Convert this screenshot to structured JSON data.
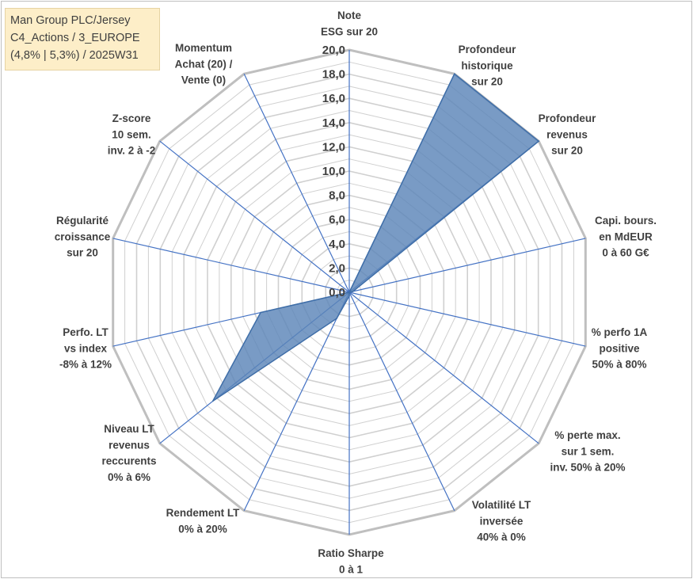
{
  "title_box": {
    "line1": "Man Group PLC/Jersey",
    "line2": "C4_Actions / 3_EUROPE",
    "line3": "(4,8% | 5,3%) / 2025W31"
  },
  "colors": {
    "fill": "#5b85b8",
    "stroke": "#3f6ea8",
    "spoke": "#4472c4",
    "grid": "#d0d0d0",
    "outer_ring": "#bfbfbf",
    "title_bg": "#fdeec8"
  },
  "chart_data": {
    "type": "radar",
    "title": "",
    "rlim": [
      0,
      20
    ],
    "tick_labels": [
      "0,0",
      "2,0",
      "4,0",
      "6,0",
      "8,0",
      "10,0",
      "12,0",
      "14,0",
      "16,0",
      "18,0",
      "20,0"
    ],
    "categories": [
      [
        "Note",
        "ESG sur 20"
      ],
      [
        "Profondeur",
        "historique",
        "sur 20"
      ],
      [
        "Profondeur",
        "revenus",
        "sur 20"
      ],
      [
        "Capi. bours.",
        "en MdEUR",
        "0 à 60 G€"
      ],
      [
        "% perfo 1A",
        "positive",
        "50% à 80%"
      ],
      [
        "% perte max.",
        "sur 1 sem.",
        "inv. 50% à 20%"
      ],
      [
        "Volatilité LT",
        "inversée",
        "40% à 0%"
      ],
      [
        "Ratio Sharpe",
        "0 à 1"
      ],
      [
        "Rendement LT",
        "0% à 20%"
      ],
      [
        "Niveau LT",
        "revenus",
        "reccurents",
        "0% à 6%"
      ],
      [
        "Perfo. LT",
        "vs index",
        "-8% à 12%"
      ],
      [
        "Régularité",
        "croissance",
        "sur 20"
      ],
      [
        "Z-score",
        "10 sem.",
        "inv. 2 à -2"
      ],
      [
        "Momentum",
        "Achat (20) /",
        "Vente (0)"
      ]
    ],
    "values": [
      0.0,
      20.0,
      20.0,
      0.3,
      0.0,
      0.0,
      0.0,
      0.3,
      2.4,
      14.4,
      7.5,
      0.0,
      0.0,
      0.0
    ],
    "grid": true,
    "legend": "none"
  }
}
